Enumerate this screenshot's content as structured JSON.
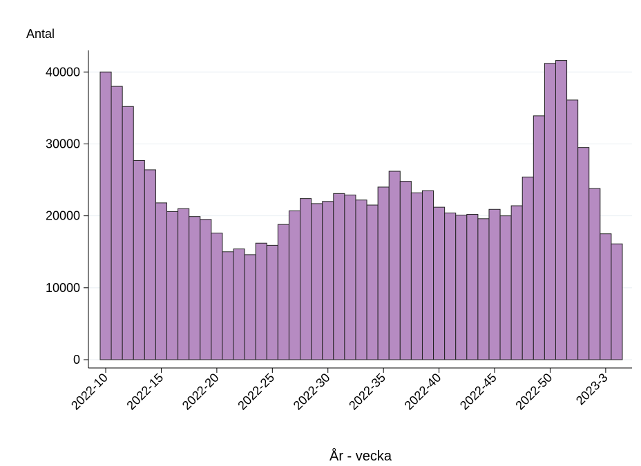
{
  "chart_data": {
    "type": "bar",
    "y_label": "Antal",
    "x_label": "År - vecka",
    "categories": [
      "2022-10",
      null,
      null,
      null,
      null,
      "2022-15",
      null,
      null,
      null,
      null,
      "2022-20",
      null,
      null,
      null,
      null,
      "2022-25",
      null,
      null,
      null,
      null,
      "2022-30",
      null,
      null,
      null,
      null,
      "2022-35",
      null,
      null,
      null,
      null,
      "2022-40",
      null,
      null,
      null,
      null,
      "2022-45",
      null,
      null,
      null,
      null,
      "2022-50",
      null,
      null,
      null,
      null,
      "2023-3",
      null
    ],
    "values": [
      40000,
      38000,
      35200,
      27700,
      26400,
      21800,
      20600,
      21000,
      19900,
      19500,
      17600,
      15000,
      15400,
      14600,
      16200,
      15900,
      18800,
      20700,
      22400,
      21700,
      22000,
      23100,
      22900,
      22200,
      21500,
      24000,
      26200,
      24800,
      23200,
      23500,
      21200,
      20400,
      20100,
      20200,
      19600,
      20900,
      20000,
      21400,
      25400,
      33900,
      41200,
      41600,
      36100,
      29500,
      23800,
      17500,
      16100
    ],
    "color": "#b68bc2",
    "ylim": [
      0,
      43000
    ],
    "yticks": [
      0,
      10000,
      20000,
      30000,
      40000
    ],
    "grid": true
  }
}
